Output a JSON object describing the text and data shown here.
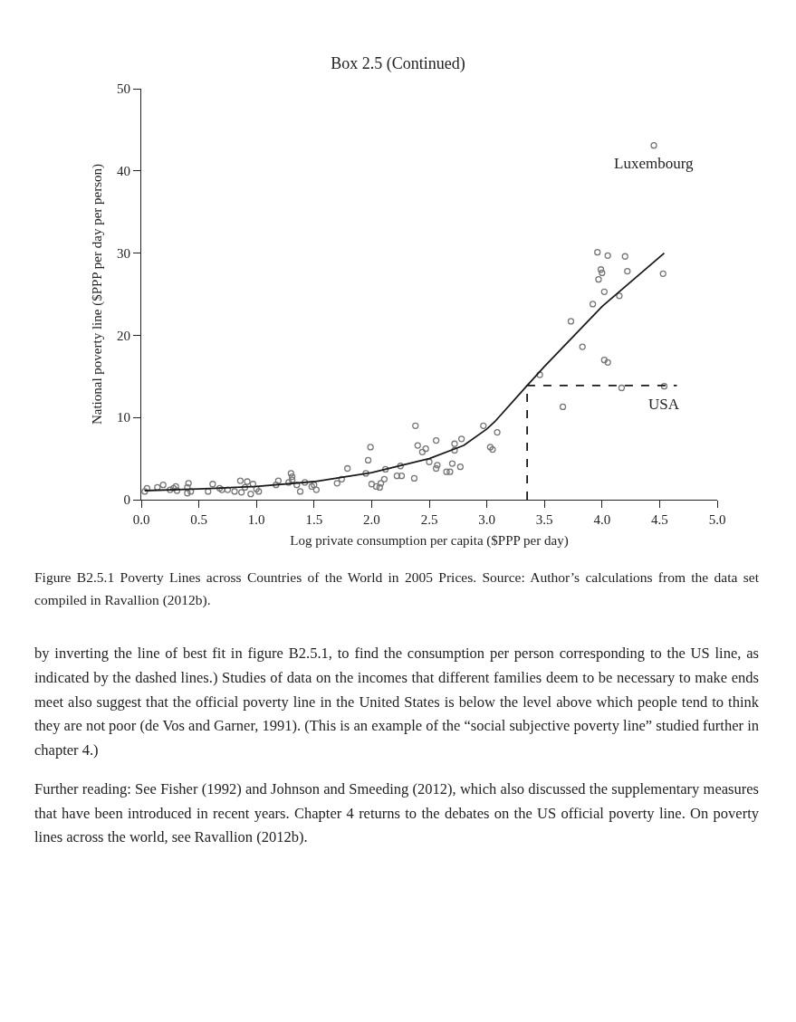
{
  "chart_data": {
    "type": "scatter",
    "title": "Box 2.5 (Continued)",
    "xlabel": "Log private consumption per capita ($PPP per day)",
    "ylabel": "National poverty line ($PPP per day per person)",
    "xlim": [
      0,
      5
    ],
    "xticks": [
      {
        "value": 0,
        "label": "0.0"
      },
      {
        "value": 0.5,
        "label": "0.5"
      },
      {
        "value": 1,
        "label": "1.0"
      },
      {
        "value": 1.5,
        "label": "1.5"
      },
      {
        "value": 2,
        "label": "2.0"
      },
      {
        "value": 2.5,
        "label": "2.5"
      },
      {
        "value": 3,
        "label": "3.0"
      },
      {
        "value": 3.5,
        "label": "3.5"
      },
      {
        "value": 4,
        "label": "4.0"
      },
      {
        "value": 4.5,
        "label": "4.5"
      },
      {
        "value": 5,
        "label": "5.0"
      }
    ],
    "ylim": [
      0,
      50
    ],
    "yticks": [
      0,
      10,
      20,
      30,
      40,
      50
    ],
    "grid": false,
    "legend": false,
    "series": [
      {
        "marker": "circle",
        "color": "#777777",
        "x": [
          0.03,
          0.05,
          0.14,
          0.19,
          0.25,
          0.28,
          0.3,
          0.31,
          0.4,
          0.4,
          0.41,
          0.43,
          0.58,
          0.62,
          0.68,
          0.7,
          0.75,
          0.81,
          0.86,
          0.87,
          0.9,
          0.92,
          0.95,
          0.97,
          1.0,
          1.02,
          1.17,
          1.19,
          1.28,
          1.3,
          1.31,
          1.31,
          1.35,
          1.38,
          1.42,
          1.48,
          1.5,
          1.52,
          1.7,
          1.74,
          1.79,
          1.95,
          1.97,
          1.99,
          2.0,
          2.04,
          2.07,
          2.08,
          2.11,
          2.12,
          2.22,
          2.25,
          2.26,
          2.37,
          2.38,
          2.4,
          2.44,
          2.47,
          2.5,
          2.56,
          2.57,
          2.56,
          2.65,
          2.68,
          2.7,
          2.72,
          2.72,
          2.77,
          2.78,
          2.97,
          3.03,
          3.05,
          3.09,
          3.46,
          3.66,
          3.73,
          3.83,
          3.92,
          3.96,
          3.97,
          3.99,
          4.0,
          4.02,
          4.02,
          4.05,
          4.05,
          4.15,
          4.17,
          4.2,
          4.22,
          4.45,
          4.53,
          4.54
        ],
        "values": [
          1.0,
          1.4,
          1.5,
          1.8,
          1.2,
          1.4,
          1.6,
          1.1,
          0.8,
          1.5,
          2.0,
          1.0,
          1.0,
          1.9,
          1.4,
          1.2,
          1.2,
          1.0,
          2.3,
          0.9,
          1.5,
          2.2,
          0.7,
          1.9,
          1.3,
          1.0,
          1.8,
          2.3,
          2.1,
          3.2,
          2.8,
          2.4,
          1.8,
          1.0,
          2.1,
          1.6,
          1.8,
          1.2,
          2.0,
          2.5,
          3.8,
          3.2,
          4.8,
          6.4,
          1.9,
          1.6,
          1.5,
          2.0,
          2.5,
          3.7,
          2.9,
          4.1,
          2.9,
          2.6,
          9.0,
          6.6,
          5.8,
          6.2,
          4.6,
          3.8,
          4.2,
          7.2,
          3.4,
          3.4,
          4.4,
          6.0,
          6.8,
          4.0,
          7.4,
          9.0,
          6.4,
          6.1,
          8.2,
          15.2,
          11.3,
          21.7,
          18.6,
          23.8,
          30.1,
          26.8,
          28.0,
          27.6,
          25.3,
          17.0,
          16.7,
          29.7,
          24.8,
          13.6,
          29.6,
          27.8,
          43.1,
          27.5,
          13.8
        ]
      },
      {
        "type": "line",
        "marker": "none",
        "color": "#1a1a1a",
        "line_style": "solid",
        "x": [
          0.03,
          0.5,
          1.0,
          1.5,
          2.0,
          2.5,
          2.8,
          3.0,
          3.07,
          3.35,
          3.5,
          4.0,
          4.54
        ],
        "values": [
          1.1,
          1.3,
          1.6,
          2.2,
          3.3,
          5.0,
          6.6,
          8.6,
          9.5,
          13.9,
          16.2,
          23.5,
          30.0
        ]
      },
      {
        "type": "line",
        "marker": "none",
        "color": "#1a1a1a",
        "line_style": "dashed",
        "x": [
          3.35,
          3.35,
          4.65
        ],
        "values": [
          0,
          13.9,
          13.9
        ]
      }
    ],
    "annotations": [
      {
        "text": "Luxembourg",
        "x": 4.45,
        "y": 43.1
      },
      {
        "text": "USA",
        "x": 4.54,
        "y": 13.8
      },
      "Figure B2.5.1 Poverty Lines across Countries of the World in 2005 Prices. Source: Author’s calculations from the data set compiled in Ravallion (2012b).",
      "by inverting the line of best fit in figure B2.5.1, to find the consumption per person corresponding to the US line, as indicated by the dashed lines.) Studies of data on the incomes that different families deem to be necessary to make ends meet also suggest that the official poverty line in the United States is below the level above which people tend to think they are not poor (de Vos and Garner, 1991). (This is an example of the “social subjective poverty line” studied further in chapter 4.)",
      "Further reading: See Fisher (1992) and Johnson and Smeeding (2012), which also discussed the supplementary measures that have been introduced in recent years. Chapter 4 returns to the debates on the US official poverty line. On poverty lines across the world, see Ravallion (2012b)."
    ]
  }
}
